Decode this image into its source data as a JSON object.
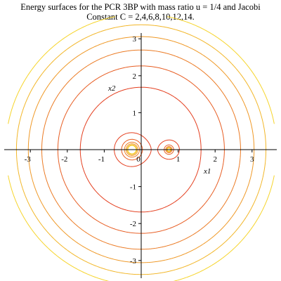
{
  "title_line1": "Energy surfaces for the PCR 3BP with mass ratio u = 1/4 and Jacobi",
  "title_line2": "Constant C = 2,4,6,8,10,12,14.",
  "chart_data": {
    "type": "contour",
    "mass_ratio": 0.25,
    "levels": [
      2,
      4,
      6,
      8,
      10,
      12,
      14
    ],
    "xlabel": "x1",
    "ylabel": "x2",
    "xlim": [
      -3.6,
      3.6
    ],
    "ylim": [
      -3.6,
      3.6
    ],
    "xticks": [
      -3,
      -2,
      -1,
      0,
      1,
      2,
      3
    ],
    "yticks": [
      -3,
      -2,
      -1,
      1,
      2,
      3
    ],
    "grid": false,
    "color_low": "#e0201c",
    "color_high": "#f6d42a"
  }
}
